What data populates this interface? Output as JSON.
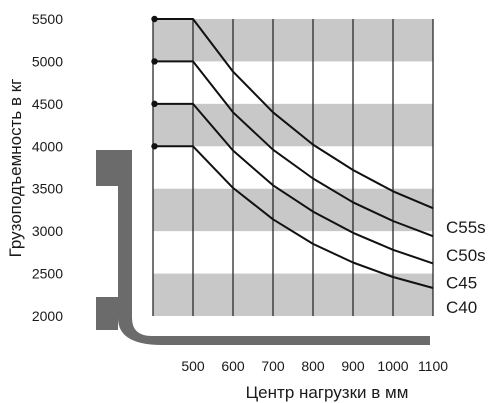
{
  "chart_data": {
    "type": "line",
    "xlabel": "Центр нагрузки в мм",
    "ylabel": "Грузоподъемность в кг",
    "x_ticks": [
      "500",
      "600",
      "700",
      "800",
      "900",
      "1000",
      "1100"
    ],
    "y_ticks": [
      "2000",
      "2500",
      "3000",
      "3500",
      "4000",
      "4500",
      "5000",
      "5500"
    ],
    "xlim": [
      500,
      1100
    ],
    "ylim": [
      2000,
      5500
    ],
    "grid": "vertical lines, alternating horizontal bands",
    "series": [
      {
        "name": "C55s",
        "x": [
          500,
          600,
          700,
          800,
          900,
          1000,
          1100
        ],
        "y": [
          5500,
          4880,
          4400,
          4020,
          3720,
          3470,
          3270
        ]
      },
      {
        "name": "C50s",
        "x": [
          500,
          600,
          700,
          800,
          900,
          1000,
          1100
        ],
        "y": [
          5000,
          4400,
          3960,
          3620,
          3340,
          3120,
          2940
        ]
      },
      {
        "name": "C45",
        "x": [
          500,
          600,
          700,
          800,
          900,
          1000,
          1100
        ],
        "y": [
          4500,
          3950,
          3540,
          3230,
          2980,
          2780,
          2620
        ]
      },
      {
        "name": "C40",
        "x": [
          500,
          600,
          700,
          800,
          900,
          1000,
          1100
        ],
        "y": [
          4000,
          3510,
          3140,
          2850,
          2630,
          2460,
          2330
        ]
      }
    ],
    "flat_start_x": 400
  },
  "colors": {
    "band": "#c8c8c8",
    "grid": "#2a2a2a",
    "line": "#111111",
    "fork": "#6b6b6b"
  }
}
